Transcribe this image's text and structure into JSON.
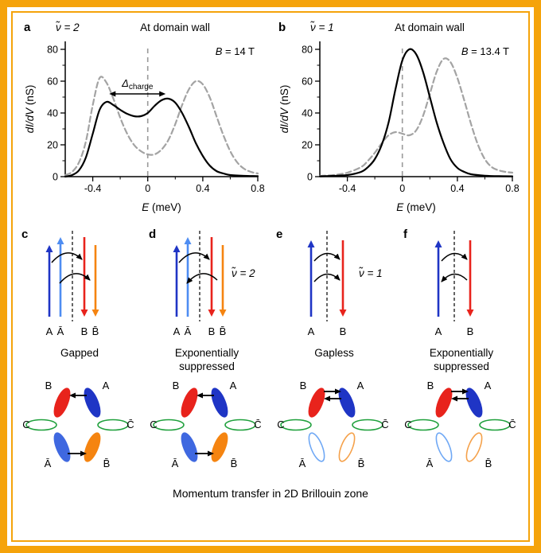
{
  "figure": {
    "frame_color": "#f5a30b",
    "caption": "Momentum transfer in 2D Brillouin zone"
  },
  "chart_data": [
    {
      "type": "line",
      "panel_letter": "a",
      "nu_label": "ν̃ = 2",
      "title": "At domain wall",
      "field_label": {
        "variable": "B",
        "rest": " = 14 T"
      },
      "xlabel": {
        "variable": "E",
        "rest": " (meV)"
      },
      "ylabel": {
        "variable": "dI/dV",
        "rest": " (nS)"
      },
      "xlim": [
        -0.6,
        0.8
      ],
      "ylim": [
        0,
        85
      ],
      "xticks": [
        -0.4,
        0,
        0.4,
        0.8
      ],
      "xticks_minor": [
        -0.2,
        0.2,
        0.6
      ],
      "yticks": [
        0,
        20,
        40,
        60,
        80
      ],
      "yticks_minor": [
        10,
        30,
        50,
        70
      ],
      "zero_line_x": 0,
      "delta_annotation": {
        "symbol": "Δ",
        "subscript": "charge",
        "from_x": -0.28,
        "to_x": 0.13,
        "y": 52
      },
      "series": [
        {
          "name": "dashed-reference",
          "style": "dashed",
          "color": "#a3a3a3",
          "points": [
            [
              -0.6,
              1
            ],
            [
              -0.55,
              3
            ],
            [
              -0.5,
              9
            ],
            [
              -0.45,
              22
            ],
            [
              -0.4,
              45
            ],
            [
              -0.35,
              62
            ],
            [
              -0.3,
              59
            ],
            [
              -0.25,
              49
            ],
            [
              -0.2,
              37
            ],
            [
              -0.15,
              27
            ],
            [
              -0.1,
              20
            ],
            [
              -0.05,
              16
            ],
            [
              0,
              14
            ],
            [
              0.05,
              14
            ],
            [
              0.1,
              17
            ],
            [
              0.15,
              23
            ],
            [
              0.2,
              33
            ],
            [
              0.25,
              45
            ],
            [
              0.3,
              55
            ],
            [
              0.35,
              60
            ],
            [
              0.4,
              58
            ],
            [
              0.45,
              50
            ],
            [
              0.5,
              38
            ],
            [
              0.55,
              26
            ],
            [
              0.6,
              16
            ],
            [
              0.65,
              9
            ],
            [
              0.7,
              5
            ],
            [
              0.75,
              3
            ],
            [
              0.8,
              2
            ]
          ]
        },
        {
          "name": "solid-domain-wall",
          "style": "solid",
          "color": "#000000",
          "points": [
            [
              -0.6,
              0
            ],
            [
              -0.55,
              1
            ],
            [
              -0.5,
              4
            ],
            [
              -0.45,
              12
            ],
            [
              -0.4,
              27
            ],
            [
              -0.35,
              42
            ],
            [
              -0.3,
              47
            ],
            [
              -0.25,
              45
            ],
            [
              -0.2,
              42
            ],
            [
              -0.15,
              39.5
            ],
            [
              -0.1,
              38
            ],
            [
              -0.05,
              38
            ],
            [
              0,
              40
            ],
            [
              0.05,
              44.5
            ],
            [
              0.1,
              48
            ],
            [
              0.15,
              49
            ],
            [
              0.2,
              46.5
            ],
            [
              0.25,
              40
            ],
            [
              0.3,
              31
            ],
            [
              0.35,
              21
            ],
            [
              0.4,
              13
            ],
            [
              0.45,
              7
            ],
            [
              0.5,
              3.5
            ],
            [
              0.55,
              2
            ],
            [
              0.6,
              1
            ],
            [
              0.7,
              0.5
            ],
            [
              0.8,
              0.3
            ]
          ]
        }
      ]
    },
    {
      "type": "line",
      "panel_letter": "b",
      "nu_label": "ν̃ = 1",
      "title": "At domain wall",
      "field_label": {
        "variable": "B",
        "rest": " = 13.4 T"
      },
      "xlabel": {
        "variable": "E",
        "rest": " (meV)"
      },
      "ylabel": {
        "variable": "dI/dV",
        "rest": " (nS)"
      },
      "xlim": [
        -0.6,
        0.8
      ],
      "ylim": [
        0,
        85
      ],
      "xticks": [
        -0.4,
        0,
        0.4,
        0.8
      ],
      "xticks_minor": [
        -0.2,
        0.2,
        0.6
      ],
      "yticks": [
        0,
        20,
        40,
        60,
        80
      ],
      "yticks_minor": [
        10,
        30,
        50,
        70
      ],
      "zero_line_x": 0,
      "delta_annotation": null,
      "series": [
        {
          "name": "dashed-reference",
          "style": "dashed",
          "color": "#a3a3a3",
          "points": [
            [
              -0.6,
              0.5
            ],
            [
              -0.5,
              1
            ],
            [
              -0.4,
              2.5
            ],
            [
              -0.3,
              6
            ],
            [
              -0.25,
              10
            ],
            [
              -0.2,
              15
            ],
            [
              -0.15,
              21
            ],
            [
              -0.1,
              26
            ],
            [
              -0.05,
              28
            ],
            [
              0,
              27
            ],
            [
              0.05,
              26
            ],
            [
              0.1,
              29
            ],
            [
              0.15,
              38
            ],
            [
              0.2,
              52
            ],
            [
              0.25,
              66
            ],
            [
              0.3,
              74
            ],
            [
              0.35,
              72
            ],
            [
              0.4,
              62
            ],
            [
              0.45,
              48
            ],
            [
              0.5,
              33
            ],
            [
              0.55,
              20
            ],
            [
              0.6,
              11
            ],
            [
              0.65,
              6
            ],
            [
              0.7,
              4
            ],
            [
              0.75,
              3
            ],
            [
              0.8,
              2.5
            ]
          ]
        },
        {
          "name": "solid-domain-wall",
          "style": "solid",
          "color": "#000000",
          "points": [
            [
              -0.6,
              0.2
            ],
            [
              -0.5,
              0.5
            ],
            [
              -0.4,
              1
            ],
            [
              -0.3,
              3
            ],
            [
              -0.25,
              6
            ],
            [
              -0.2,
              11
            ],
            [
              -0.15,
              20
            ],
            [
              -0.1,
              34
            ],
            [
              -0.05,
              55
            ],
            [
              0,
              73
            ],
            [
              0.05,
              80
            ],
            [
              0.1,
              77
            ],
            [
              0.15,
              66
            ],
            [
              0.2,
              50
            ],
            [
              0.25,
              34
            ],
            [
              0.3,
              21
            ],
            [
              0.35,
              11
            ],
            [
              0.4,
              5.5
            ],
            [
              0.45,
              3
            ],
            [
              0.5,
              1.5
            ],
            [
              0.6,
              0.6
            ],
            [
              0.7,
              0.3
            ],
            [
              0.8,
              0.2
            ]
          ]
        }
      ]
    }
  ],
  "level_diagrams": [
    {
      "letter": "c",
      "side_label": "",
      "caption": "Gapped",
      "up_arrows": [
        {
          "label": "A",
          "color": "#1f35c5"
        },
        {
          "label": "Ā",
          "color": "#4e8df2"
        }
      ],
      "down_arrows": [
        {
          "label": "B",
          "color": "#e8231c"
        },
        {
          "label": "B̄",
          "color": "#f58410"
        }
      ],
      "arcs": [
        "right",
        "right"
      ]
    },
    {
      "letter": "d",
      "side_label": "ν̃ = 2",
      "caption": "Exponentially suppressed",
      "up_arrows": [
        {
          "label": "A",
          "color": "#1f35c5"
        },
        {
          "label": "Ā",
          "color": "#4e8df2"
        }
      ],
      "down_arrows": [
        {
          "label": "B",
          "color": "#e8231c"
        },
        {
          "label": "B̄",
          "color": "#f58410"
        }
      ],
      "arcs": [
        "right",
        "left"
      ]
    },
    {
      "letter": "e",
      "side_label": "ν̃ = 1",
      "caption": "Gapless",
      "up_arrows": [
        {
          "label": "A",
          "color": "#1f35c5"
        }
      ],
      "down_arrows": [
        {
          "label": "B",
          "color": "#e8231c"
        }
      ],
      "arcs": [
        "right",
        "right"
      ]
    },
    {
      "letter": "f",
      "side_label": "",
      "caption": "Exponentially suppressed",
      "up_arrows": [
        {
          "label": "A",
          "color": "#1f35c5"
        }
      ],
      "down_arrows": [
        {
          "label": "B",
          "color": "#e8231c"
        }
      ],
      "arcs": [
        "right",
        "left"
      ]
    }
  ],
  "bz_diagrams": [
    {
      "pockets": {
        "top_left": {
          "label": "B",
          "filled": true,
          "color": "#e8231c"
        },
        "top_right": {
          "label": "A",
          "filled": true,
          "color": "#1f35c5"
        },
        "left": {
          "label": "C",
          "filled": false,
          "color": "#1fa03c"
        },
        "right": {
          "label": "C̄",
          "filled": false,
          "color": "#1fa03c"
        },
        "bottom_left": {
          "label": "Ā",
          "filled": true,
          "color": "#3f68e0"
        },
        "bottom_right": {
          "label": "B̄",
          "filled": true,
          "color": "#f58410"
        }
      },
      "top_arrows": [
        "left"
      ],
      "bottom_arrows": [
        "right"
      ]
    },
    {
      "pockets": {
        "top_left": {
          "label": "B",
          "filled": true,
          "color": "#e8231c"
        },
        "top_right": {
          "label": "A",
          "filled": true,
          "color": "#1f35c5"
        },
        "left": {
          "label": "C",
          "filled": false,
          "color": "#1fa03c"
        },
        "right": {
          "label": "C̄",
          "filled": false,
          "color": "#1fa03c"
        },
        "bottom_left": {
          "label": "Ā",
          "filled": true,
          "color": "#3f68e0"
        },
        "bottom_right": {
          "label": "B̄",
          "filled": true,
          "color": "#f58410"
        }
      },
      "top_arrows": [
        "left"
      ],
      "bottom_arrows": [
        "right"
      ]
    },
    {
      "pockets": {
        "top_left": {
          "label": "B",
          "filled": true,
          "color": "#e8231c"
        },
        "top_right": {
          "label": "A",
          "filled": true,
          "color": "#1f35c5"
        },
        "left": {
          "label": "C",
          "filled": false,
          "color": "#1fa03c"
        },
        "right": {
          "label": "C̄",
          "filled": false,
          "color": "#1fa03c"
        },
        "bottom_left": {
          "label": "Ā",
          "filled": false,
          "color": "#6fa8f5"
        },
        "bottom_right": {
          "label": "B̄",
          "filled": false,
          "color": "#f5a14a"
        }
      },
      "top_arrows": [
        "right",
        "left"
      ],
      "bottom_arrows": []
    },
    {
      "pockets": {
        "top_left": {
          "label": "B",
          "filled": true,
          "color": "#e8231c"
        },
        "top_right": {
          "label": "A",
          "filled": true,
          "color": "#1f35c5"
        },
        "left": {
          "label": "C",
          "filled": false,
          "color": "#1fa03c"
        },
        "right": {
          "label": "C̄",
          "filled": false,
          "color": "#1fa03c"
        },
        "bottom_left": {
          "label": "Ā",
          "filled": false,
          "color": "#6fa8f5"
        },
        "bottom_right": {
          "label": "B̄",
          "filled": false,
          "color": "#f5a14a"
        }
      },
      "top_arrows": [
        "right",
        "left"
      ],
      "bottom_arrows": []
    }
  ]
}
